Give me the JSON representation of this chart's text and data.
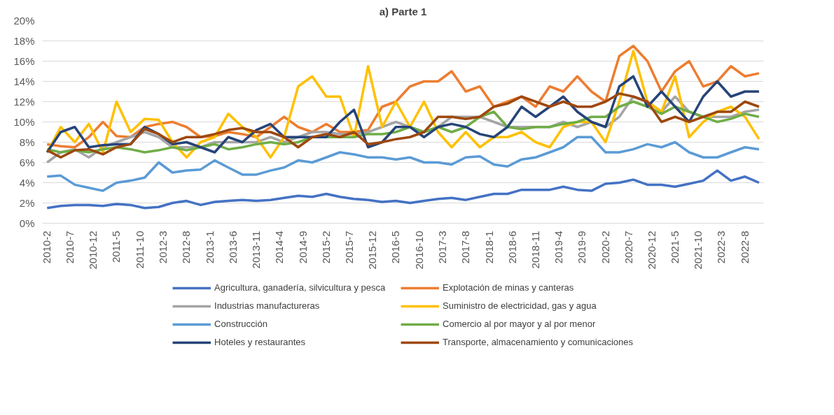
{
  "chart_data": {
    "type": "line",
    "title": "a) Parte 1",
    "x": [
      "2010-02",
      "2010-05",
      "2010-08",
      "2010-11",
      "2011-02",
      "2011-05",
      "2011-08",
      "2011-11",
      "2012-02",
      "2012-05",
      "2012-08",
      "2012-11",
      "2013-02",
      "2013-05",
      "2013-08",
      "2013-11",
      "2014-02",
      "2014-05",
      "2014-08",
      "2014-11",
      "2015-02",
      "2015-05",
      "2015-08",
      "2015-11",
      "2016-02",
      "2016-05",
      "2016-08",
      "2016-11",
      "2017-02",
      "2017-05",
      "2017-08",
      "2017-11",
      "2018-02",
      "2018-05",
      "2018-08",
      "2018-11",
      "2019-02",
      "2019-05",
      "2019-08",
      "2019-11",
      "2020-02",
      "2020-05",
      "2020-08",
      "2020-11",
      "2021-02",
      "2021-05",
      "2021-08",
      "2021-11",
      "2022-02",
      "2022-05",
      "2022-08",
      "2022-11"
    ],
    "xlim": [
      "2010-01",
      "2022-12"
    ],
    "xticks": [
      {
        "value": "2010-02",
        "label": "2010-2"
      },
      {
        "value": "2010-07",
        "label": "2010-7"
      },
      {
        "value": "2010-12",
        "label": "2010-12"
      },
      {
        "value": "2011-05",
        "label": "2011-5"
      },
      {
        "value": "2011-10",
        "label": "2011-10"
      },
      {
        "value": "2012-03",
        "label": "2012-3"
      },
      {
        "value": "2012-08",
        "label": "2012-8"
      },
      {
        "value": "2013-01",
        "label": "2013-1"
      },
      {
        "value": "2013-06",
        "label": "2013-6"
      },
      {
        "value": "2013-11",
        "label": "2013-11"
      },
      {
        "value": "2014-04",
        "label": "2014-4"
      },
      {
        "value": "2014-09",
        "label": "2014-9"
      },
      {
        "value": "2015-02",
        "label": "2015-2"
      },
      {
        "value": "2015-07",
        "label": "2015-7"
      },
      {
        "value": "2015-12",
        "label": "2015-12"
      },
      {
        "value": "2016-05",
        "label": "2016-5"
      },
      {
        "value": "2016-10",
        "label": "2016-10"
      },
      {
        "value": "2017-03",
        "label": "2017-3"
      },
      {
        "value": "2017-08",
        "label": "2017-8"
      },
      {
        "value": "2018-01",
        "label": "2018-1"
      },
      {
        "value": "2018-06",
        "label": "2018-6"
      },
      {
        "value": "2018-11",
        "label": "2018-11"
      },
      {
        "value": "2019-04",
        "label": "2019-4"
      },
      {
        "value": "2019-09",
        "label": "2019-9"
      },
      {
        "value": "2020-02",
        "label": "2020-2"
      },
      {
        "value": "2020-07",
        "label": "2020-7"
      },
      {
        "value": "2020-12",
        "label": "2020-12"
      },
      {
        "value": "2021-05",
        "label": "2021-5"
      },
      {
        "value": "2021-10",
        "label": "2021-10"
      },
      {
        "value": "2022-03",
        "label": "2022-3"
      },
      {
        "value": "2022-08",
        "label": "2022-8"
      }
    ],
    "ylim": [
      0,
      20
    ],
    "yticks": [
      {
        "value": 0,
        "label": "0%"
      },
      {
        "value": 2,
        "label": "2%"
      },
      {
        "value": 4,
        "label": "4%"
      },
      {
        "value": 6,
        "label": "6%"
      },
      {
        "value": 8,
        "label": "8%"
      },
      {
        "value": 10,
        "label": "10%"
      },
      {
        "value": 12,
        "label": "12%"
      },
      {
        "value": 14,
        "label": "14%"
      },
      {
        "value": 16,
        "label": "16%"
      },
      {
        "value": 18,
        "label": "18%"
      },
      {
        "value": 20,
        "label": "20%"
      }
    ],
    "grid": "y",
    "legend": "bottom",
    "marker": "none",
    "line_style": "solid",
    "series": [
      {
        "name": "Agricultura, ganadería, silvicultura y pesca",
        "color": "#4472c4",
        "values": [
          1.5,
          1.7,
          1.8,
          1.8,
          1.7,
          1.9,
          1.8,
          1.5,
          1.6,
          2.0,
          2.2,
          1.8,
          2.1,
          2.2,
          2.3,
          2.2,
          2.3,
          2.5,
          2.7,
          2.6,
          2.9,
          2.6,
          2.4,
          2.3,
          2.1,
          2.2,
          2.0,
          2.2,
          2.4,
          2.5,
          2.3,
          2.6,
          2.9,
          2.9,
          3.3,
          3.3,
          3.3,
          3.6,
          3.3,
          3.2,
          3.9,
          4.0,
          4.3,
          3.8,
          3.8,
          3.6,
          3.9,
          4.2,
          5.2,
          4.2,
          4.6,
          4.0
        ]
      },
      {
        "name": "Explotación de minas y canteras",
        "color": "#ed7d31",
        "values": [
          7.8,
          7.6,
          7.5,
          8.5,
          10.0,
          8.6,
          8.5,
          9.5,
          9.8,
          10.0,
          9.5,
          8.5,
          8.6,
          9.0,
          8.8,
          8.5,
          9.5,
          10.5,
          9.5,
          9.0,
          9.8,
          9.0,
          9.0,
          9.2,
          11.5,
          12.0,
          13.5,
          14.0,
          14.0,
          15.0,
          13.0,
          13.5,
          11.5,
          12.0,
          12.5,
          11.5,
          13.5,
          13.0,
          14.5,
          13.0,
          12.0,
          16.5,
          17.5,
          16.0,
          13.0,
          15.0,
          16.0,
          13.5,
          14.0,
          15.5,
          14.5,
          14.8
        ]
      },
      {
        "name": "Industrias manufactureras",
        "color": "#a5a5a5",
        "values": [
          6.0,
          7.0,
          7.3,
          6.5,
          7.5,
          8.0,
          8.5,
          9.0,
          8.5,
          7.5,
          7.5,
          7.5,
          8.0,
          8.0,
          8.0,
          8.0,
          8.5,
          8.0,
          8.5,
          9.0,
          9.0,
          8.8,
          8.8,
          9.0,
          9.5,
          10.0,
          9.5,
          9.0,
          9.5,
          10.5,
          10.5,
          10.5,
          10.0,
          9.5,
          9.5,
          9.5,
          9.5,
          10.0,
          9.5,
          10.0,
          9.5,
          10.5,
          12.5,
          12.0,
          11.0,
          12.5,
          11.0,
          10.5,
          10.5,
          10.5,
          11.0,
          11.2
        ]
      },
      {
        "name": "Suministro de electricidad, gas y agua",
        "color": "#ffc000",
        "values": [
          7.0,
          9.5,
          8.0,
          9.8,
          7.0,
          12.0,
          9.0,
          10.3,
          10.2,
          8.0,
          6.5,
          8.0,
          8.5,
          10.8,
          9.5,
          8.5,
          6.5,
          8.5,
          13.5,
          14.5,
          12.5,
          12.5,
          8.5,
          15.5,
          9.5,
          12.0,
          9.5,
          12.0,
          9.0,
          7.5,
          9.0,
          7.5,
          8.5,
          8.5,
          9.0,
          8.0,
          7.5,
          9.5,
          10.0,
          10.0,
          8.0,
          12.0,
          17.0,
          12.0,
          11.0,
          14.5,
          8.5,
          10.0,
          11.0,
          11.5,
          10.5,
          8.3
        ]
      },
      {
        "name": "Construcción",
        "color": "#5b9bd5",
        "values": [
          4.6,
          4.7,
          3.8,
          3.5,
          3.2,
          4.0,
          4.2,
          4.5,
          6.0,
          5.0,
          5.2,
          5.3,
          6.2,
          5.5,
          4.8,
          4.8,
          5.2,
          5.5,
          6.2,
          6.0,
          6.5,
          7.0,
          6.8,
          6.5,
          6.5,
          6.3,
          6.5,
          6.0,
          6.0,
          5.8,
          6.5,
          6.6,
          5.8,
          5.6,
          6.3,
          6.5,
          7.0,
          7.5,
          8.5,
          8.5,
          7.0,
          7.0,
          7.3,
          7.8,
          7.5,
          8.0,
          7.0,
          6.5,
          6.5,
          7.0,
          7.5,
          7.3
        ]
      },
      {
        "name": "Comercio al por mayor y al por menor",
        "color": "#70ad47",
        "values": [
          7.3,
          7.0,
          7.2,
          7.0,
          7.3,
          7.5,
          7.3,
          7.0,
          7.2,
          7.5,
          7.2,
          7.5,
          7.8,
          7.3,
          7.5,
          7.8,
          8.0,
          7.8,
          8.0,
          8.5,
          8.5,
          8.5,
          8.5,
          8.8,
          8.8,
          9.0,
          9.5,
          9.0,
          9.5,
          9.0,
          9.5,
          10.5,
          11.0,
          9.5,
          9.3,
          9.5,
          9.5,
          9.8,
          10.0,
          10.5,
          10.5,
          11.5,
          12.0,
          11.5,
          10.8,
          11.5,
          11.0,
          10.5,
          10.0,
          10.3,
          10.8,
          10.5
        ]
      },
      {
        "name": "Hoteles y restaurantes",
        "color": "#264478",
        "values": [
          7.0,
          9.0,
          9.5,
          7.5,
          7.7,
          7.8,
          7.8,
          9.5,
          8.8,
          7.8,
          8.0,
          7.5,
          7.0,
          8.5,
          8.0,
          9.2,
          9.8,
          8.5,
          8.5,
          8.5,
          8.5,
          10.0,
          11.2,
          7.5,
          8.0,
          9.5,
          9.5,
          8.5,
          9.5,
          9.8,
          9.5,
          8.8,
          8.5,
          9.5,
          11.5,
          10.5,
          11.5,
          12.5,
          11.0,
          10.0,
          9.5,
          13.5,
          14.5,
          11.5,
          13.0,
          11.5,
          10.0,
          12.5,
          14.0,
          12.5,
          13.0,
          13.0
        ]
      },
      {
        "name": "Transporte, almacenamiento y comunicaciones",
        "color": "#9e480e",
        "values": [
          7.2,
          6.5,
          7.2,
          7.3,
          6.8,
          7.5,
          7.8,
          9.3,
          8.8,
          8.0,
          8.5,
          8.5,
          8.8,
          9.2,
          9.4,
          9.0,
          9.0,
          8.5,
          7.5,
          8.5,
          8.8,
          8.5,
          9.0,
          7.8,
          8.0,
          8.3,
          8.5,
          9.0,
          10.5,
          10.5,
          10.3,
          10.5,
          11.5,
          11.8,
          12.5,
          12.0,
          11.5,
          12.0,
          11.5,
          11.5,
          12.0,
          12.8,
          12.5,
          12.0,
          10.0,
          10.5,
          10.0,
          10.5,
          11.0,
          11.0,
          12.0,
          11.5
        ]
      }
    ]
  }
}
